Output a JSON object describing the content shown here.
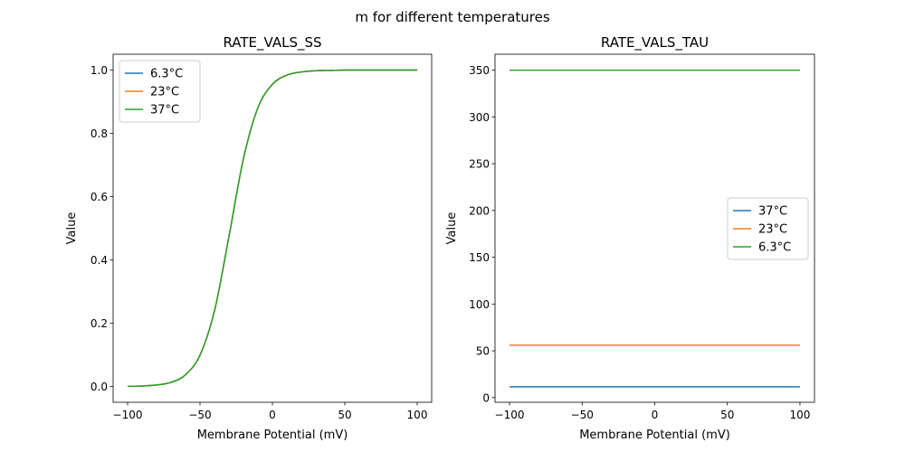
{
  "chart_data": [
    {
      "type": "line",
      "suptitle": "m for different temperatures",
      "title": "RATE_VALS_SS",
      "xlabel": "Membrane Potential (mV)",
      "ylabel": "Value",
      "xlim": [
        -110,
        110
      ],
      "ylim": [
        -0.05,
        1.05
      ],
      "xticks": [
        -100,
        -50,
        0,
        50,
        100
      ],
      "xtick_labels": [
        "−100",
        "−50",
        "0",
        "50",
        "100"
      ],
      "yticks": [
        0.0,
        0.2,
        0.4,
        0.6,
        0.8,
        1.0
      ],
      "ytick_labels": [
        "0.0",
        "0.2",
        "0.4",
        "0.6",
        "0.8",
        "1.0"
      ],
      "legend": "top-left",
      "x": [
        -100,
        -90,
        -80,
        -70,
        -60,
        -50,
        -40,
        -30,
        -20,
        -10,
        0,
        10,
        20,
        30,
        40,
        50,
        60,
        70,
        80,
        90,
        100
      ],
      "series": [
        {
          "name": "6.3°C",
          "color": "#1f77b4",
          "values": [
            0.0006,
            0.0016,
            0.0046,
            0.013,
            0.037,
            0.099,
            0.239,
            0.474,
            0.72,
            0.881,
            0.955,
            0.984,
            0.994,
            0.998,
            0.999,
            1,
            1,
            1,
            1,
            1,
            1
          ]
        },
        {
          "name": "23°C",
          "color": "#ff7f0e",
          "values": [
            0.0006,
            0.0016,
            0.0046,
            0.013,
            0.037,
            0.099,
            0.239,
            0.474,
            0.72,
            0.881,
            0.955,
            0.984,
            0.994,
            0.998,
            0.999,
            1,
            1,
            1,
            1,
            1,
            1
          ]
        },
        {
          "name": "37°C",
          "color": "#2ca02c",
          "values": [
            0.0006,
            0.0016,
            0.0046,
            0.013,
            0.037,
            0.099,
            0.239,
            0.474,
            0.72,
            0.881,
            0.955,
            0.984,
            0.994,
            0.998,
            0.999,
            1,
            1,
            1,
            1,
            1,
            1
          ]
        }
      ]
    },
    {
      "type": "line",
      "title": "RATE_VALS_TAU",
      "xlabel": "Membrane Potential (mV)",
      "ylabel": "Value",
      "xlim": [
        -110,
        110
      ],
      "ylim": [
        -5,
        367
      ],
      "xticks": [
        -100,
        -50,
        0,
        50,
        100
      ],
      "xtick_labels": [
        "−100",
        "−50",
        "0",
        "50",
        "100"
      ],
      "yticks": [
        0,
        50,
        100,
        150,
        200,
        250,
        300,
        350
      ],
      "ytick_labels": [
        "0",
        "50",
        "100",
        "150",
        "200",
        "250",
        "300",
        "350"
      ],
      "legend": "center-right",
      "x": [
        -100,
        100
      ],
      "series": [
        {
          "name": "37°C",
          "color": "#1f77b4",
          "values": [
            11.5,
            11.5
          ]
        },
        {
          "name": "23°C",
          "color": "#ff7f0e",
          "values": [
            56,
            56
          ]
        },
        {
          "name": "6.3°C",
          "color": "#2ca02c",
          "values": [
            350,
            350
          ]
        }
      ]
    }
  ]
}
